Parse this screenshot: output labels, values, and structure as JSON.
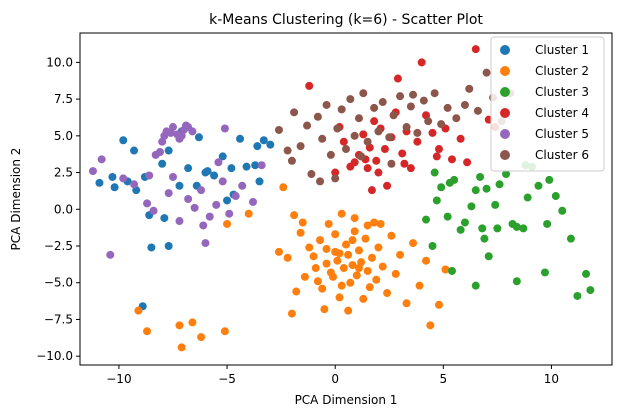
{
  "chart_data": {
    "type": "scatter",
    "title": "k-Means Clustering (k=6) - Scatter Plot",
    "xlabel": "PCA Dimension 1",
    "ylabel": "PCA Dimension 2",
    "xlim": [
      -11.8,
      12.8
    ],
    "ylim": [
      -10.6,
      12.0
    ],
    "xticks": [
      -10,
      -5,
      0,
      5,
      10
    ],
    "yticks": [
      -10.0,
      -7.5,
      -5.0,
      -2.5,
      0.0,
      2.5,
      5.0,
      7.5,
      10.0
    ],
    "ytick_labels": [
      "−10.0",
      "−7.5",
      "−5.0",
      "−2.5",
      "0.0",
      "2.5",
      "5.0",
      "7.5",
      "10.0"
    ],
    "xtick_labels": [
      "−10",
      "−5",
      "0",
      "5",
      "10"
    ],
    "grid": false,
    "legend_position": "top-right",
    "series": [
      {
        "name": "Cluster 1",
        "color": "#1f77b4",
        "points": [
          [
            -10.9,
            1.8
          ],
          [
            -10.3,
            2.2
          ],
          [
            -10.2,
            1.5
          ],
          [
            -9.8,
            4.7
          ],
          [
            -9.6,
            1.9
          ],
          [
            -9.3,
            4.0
          ],
          [
            -8.8,
            2.2
          ],
          [
            -8.6,
            -0.4
          ],
          [
            -8.5,
            -2.6
          ],
          [
            -8.0,
            3.1
          ],
          [
            -7.9,
            -0.6
          ],
          [
            -7.7,
            -2.5
          ],
          [
            -7.7,
            4.0
          ],
          [
            -7.2,
            1.6
          ],
          [
            -6.8,
            2.8
          ],
          [
            -6.4,
            1.6
          ],
          [
            -6.0,
            2.5
          ],
          [
            -5.9,
            2.6
          ],
          [
            -5.6,
            2.3
          ],
          [
            -5.2,
            3.6
          ],
          [
            -5.0,
            0.6
          ],
          [
            -4.7,
            1.0
          ],
          [
            -4.4,
            4.8
          ],
          [
            -4.1,
            2.9
          ],
          [
            -3.7,
            3.0
          ],
          [
            -3.6,
            4.3
          ],
          [
            -3.5,
            1.9
          ],
          [
            -3.3,
            4.7
          ],
          [
            -3.0,
            4.4
          ],
          [
            -8.9,
            -6.6
          ],
          [
            -9.2,
            1.3
          ],
          [
            -7.1,
            5.3
          ],
          [
            -6.3,
            4.9
          ],
          [
            -4.8,
            2.8
          ]
        ]
      },
      {
        "name": "Cluster 2",
        "color": "#ff7f0e",
        "points": [
          [
            -9.1,
            -6.9
          ],
          [
            -8.7,
            -8.3
          ],
          [
            -7.2,
            -7.9
          ],
          [
            -7.1,
            -9.4
          ],
          [
            -6.6,
            -7.7
          ],
          [
            -6.2,
            -8.7
          ],
          [
            -5.1,
            -8.3
          ],
          [
            -5.0,
            -1.0
          ],
          [
            -4.0,
            -0.3
          ],
          [
            -2.4,
            1.5
          ],
          [
            -1.9,
            -0.4
          ],
          [
            -1.6,
            -1.6
          ],
          [
            -2.0,
            -7.1
          ],
          [
            -1.4,
            -4.6
          ],
          [
            -1.2,
            -2.6
          ],
          [
            -1.0,
            -3.2
          ],
          [
            -0.9,
            -4.0
          ],
          [
            -0.7,
            -2.1
          ],
          [
            -0.6,
            -5.4
          ],
          [
            -0.4,
            -3.7
          ],
          [
            -0.3,
            -1.0
          ],
          [
            -0.2,
            -4.3
          ],
          [
            0.0,
            -2.9
          ],
          [
            0.1,
            -3.5
          ],
          [
            0.2,
            -6.0
          ],
          [
            0.3,
            -0.3
          ],
          [
            0.4,
            -4.0
          ],
          [
            0.5,
            -2.4
          ],
          [
            0.6,
            -3.1
          ],
          [
            0.7,
            -5.0
          ],
          [
            0.8,
            -3.8
          ],
          [
            0.9,
            -1.5
          ],
          [
            1.0,
            -4.5
          ],
          [
            1.1,
            -2.8
          ],
          [
            1.2,
            -3.6
          ],
          [
            1.3,
            -6.1
          ],
          [
            1.4,
            -2.0
          ],
          [
            1.5,
            -4.2
          ],
          [
            1.6,
            -5.3
          ],
          [
            1.7,
            -3.3
          ],
          [
            1.8,
            -0.9
          ],
          [
            1.9,
            -4.8
          ],
          [
            2.0,
            -2.6
          ],
          [
            2.2,
            -3.9
          ],
          [
            2.4,
            -5.7
          ],
          [
            2.6,
            -1.8
          ],
          [
            2.8,
            -4.4
          ],
          [
            3.0,
            -3.1
          ],
          [
            3.3,
            -6.4
          ],
          [
            3.6,
            -2.3
          ],
          [
            3.9,
            -5.2
          ],
          [
            4.2,
            -3.5
          ],
          [
            4.4,
            -7.9
          ],
          [
            4.8,
            -6.5
          ],
          [
            5.1,
            -4.1
          ],
          [
            -0.5,
            -6.8
          ],
          [
            0.6,
            -6.9
          ],
          [
            -1.8,
            -5.6
          ],
          [
            -2.2,
            -3.3
          ],
          [
            -1.5,
            -0.9
          ],
          [
            0.0,
            -1.7
          ],
          [
            0.9,
            -0.6
          ],
          [
            -0.8,
            -4.9
          ],
          [
            0.3,
            -5.2
          ],
          [
            1.5,
            -1.1
          ],
          [
            2.1,
            -1.0
          ],
          [
            -2.6,
            -2.9
          ],
          [
            -0.1,
            -4.6
          ],
          [
            0.2,
            -3.0
          ],
          [
            0.8,
            -2.1
          ],
          [
            1.1,
            -4.0
          ],
          [
            -0.4,
            -2.7
          ]
        ]
      },
      {
        "name": "Cluster 3",
        "color": "#2ca02c",
        "points": [
          [
            4.6,
            2.5
          ],
          [
            4.7,
            0.6
          ],
          [
            4.9,
            1.5
          ],
          [
            5.2,
            -0.5
          ],
          [
            5.3,
            1.8
          ],
          [
            5.5,
            2.0
          ],
          [
            5.8,
            -1.4
          ],
          [
            6.0,
            -0.9
          ],
          [
            6.3,
            0.2
          ],
          [
            6.5,
            1.3
          ],
          [
            6.7,
            2.2
          ],
          [
            6.8,
            -1.3
          ],
          [
            6.9,
            -2.0
          ],
          [
            7.1,
            -3.2
          ],
          [
            7.4,
            0.3
          ],
          [
            7.6,
            1.7
          ],
          [
            7.9,
            2.4
          ],
          [
            8.2,
            -1.0
          ],
          [
            8.4,
            -1.2
          ],
          [
            8.7,
            -1.3
          ],
          [
            8.9,
            0.8
          ],
          [
            9.1,
            2.9
          ],
          [
            9.4,
            1.6
          ],
          [
            9.7,
            -4.3
          ],
          [
            9.9,
            2.0
          ],
          [
            10.2,
            0.9
          ],
          [
            10.5,
            -0.1
          ],
          [
            10.9,
            -2.0
          ],
          [
            11.2,
            -5.9
          ],
          [
            11.6,
            -4.4
          ],
          [
            11.8,
            -5.5
          ],
          [
            4.2,
            -0.7
          ],
          [
            4.5,
            -2.5
          ],
          [
            5.4,
            -4.2
          ],
          [
            6.5,
            -5.2
          ],
          [
            8.4,
            -4.9
          ],
          [
            8.8,
            3.0
          ],
          [
            9.8,
            -1.0
          ],
          [
            7.5,
            -1.3
          ],
          [
            7.0,
            1.4
          ]
        ]
      },
      {
        "name": "Cluster 4",
        "color": "#d62728",
        "points": [
          [
            -1.2,
            8.4
          ],
          [
            0.2,
            5.6
          ],
          [
            0.4,
            4.6
          ],
          [
            0.7,
            2.9
          ],
          [
            0.9,
            3.2
          ],
          [
            1.1,
            3.7
          ],
          [
            1.3,
            5.1
          ],
          [
            1.5,
            2.8
          ],
          [
            1.6,
            4.2
          ],
          [
            1.8,
            6.0
          ],
          [
            1.9,
            3.3
          ],
          [
            2.1,
            5.5
          ],
          [
            2.3,
            4.1
          ],
          [
            2.4,
            1.6
          ],
          [
            2.6,
            4.9
          ],
          [
            2.8,
            6.6
          ],
          [
            2.9,
            8.9
          ],
          [
            3.1,
            3.8
          ],
          [
            3.3,
            5.3
          ],
          [
            3.5,
            2.8
          ],
          [
            3.8,
            4.6
          ],
          [
            4.0,
            10.0
          ],
          [
            4.2,
            6.4
          ],
          [
            4.5,
            5.2
          ],
          [
            4.8,
            4.1
          ],
          [
            5.1,
            5.5
          ],
          [
            5.4,
            3.4
          ],
          [
            5.8,
            4.8
          ],
          [
            6.1,
            3.2
          ],
          [
            6.5,
            10.9
          ],
          [
            7.1,
            6.1
          ],
          [
            7.4,
            5.6
          ],
          [
            0.0,
            2.5
          ],
          [
            2.0,
            2.5
          ],
          [
            3.2,
            3.1
          ],
          [
            4.7,
            3.6
          ],
          [
            1.4,
            3.4
          ],
          [
            1.7,
            1.3
          ]
        ]
      },
      {
        "name": "Cluster 5",
        "color": "#9467bd",
        "points": [
          [
            -11.2,
            2.6
          ],
          [
            -10.8,
            3.4
          ],
          [
            -10.4,
            -3.1
          ],
          [
            -9.8,
            2.1
          ],
          [
            -9.3,
            1.7
          ],
          [
            -8.7,
            0.4
          ],
          [
            -8.6,
            2.3
          ],
          [
            -8.4,
            -0.1
          ],
          [
            -8.1,
            3.9
          ],
          [
            -8.0,
            4.6
          ],
          [
            -7.9,
            5.0
          ],
          [
            -7.8,
            5.3
          ],
          [
            -7.6,
            5.2
          ],
          [
            -7.5,
            5.6
          ],
          [
            -7.3,
            5.1
          ],
          [
            -7.2,
            4.8
          ],
          [
            -7.1,
            5.0
          ],
          [
            -7.0,
            5.4
          ],
          [
            -6.9,
            5.7
          ],
          [
            -6.8,
            5.6
          ],
          [
            -6.6,
            5.3
          ],
          [
            -6.8,
            0.7
          ],
          [
            -6.5,
            0.1
          ],
          [
            -6.2,
            1.3
          ],
          [
            -6.0,
            -2.3
          ],
          [
            -5.8,
            -0.5
          ],
          [
            -5.5,
            0.3
          ],
          [
            -5.2,
            1.9
          ],
          [
            -5.1,
            5.5
          ],
          [
            -4.9,
            -0.3
          ],
          [
            -4.6,
            0.9
          ],
          [
            -3.8,
            0.5
          ],
          [
            -3.4,
            3.0
          ],
          [
            -7.2,
            -0.8
          ],
          [
            -7.5,
            2.2
          ],
          [
            -8.3,
            3.7
          ],
          [
            -6.1,
            -1.1
          ],
          [
            -5.4,
            3.2
          ],
          [
            -4.3,
            1.6
          ],
          [
            -7.7,
            1.1
          ]
        ]
      },
      {
        "name": "Cluster 6",
        "color": "#8c564b",
        "points": [
          [
            -2.6,
            5.4
          ],
          [
            -2.0,
            3.3
          ],
          [
            -1.9,
            6.6
          ],
          [
            -1.6,
            4.3
          ],
          [
            -1.3,
            5.7
          ],
          [
            -1.1,
            2.4
          ],
          [
            -0.8,
            6.3
          ],
          [
            -0.6,
            4.8
          ],
          [
            -0.4,
            7.1
          ],
          [
            -0.2,
            3.7
          ],
          [
            0.1,
            5.5
          ],
          [
            0.3,
            6.8
          ],
          [
            0.5,
            4.1
          ],
          [
            0.7,
            7.5
          ],
          [
            0.9,
            5.0
          ],
          [
            1.1,
            6.2
          ],
          [
            1.3,
            7.9
          ],
          [
            1.5,
            4.6
          ],
          [
            1.8,
            6.9
          ],
          [
            2.0,
            5.3
          ],
          [
            2.2,
            7.3
          ],
          [
            2.5,
            4.9
          ],
          [
            2.7,
            6.4
          ],
          [
            3.0,
            7.7
          ],
          [
            3.3,
            5.6
          ],
          [
            3.5,
            7.0
          ],
          [
            3.8,
            5.2
          ],
          [
            4.1,
            7.4
          ],
          [
            4.3,
            6.0
          ],
          [
            4.6,
            7.9
          ],
          [
            4.9,
            5.8
          ],
          [
            5.2,
            6.9
          ],
          [
            5.6,
            6.2
          ],
          [
            6.0,
            7.1
          ],
          [
            6.2,
            8.2
          ],
          [
            6.6,
            6.7
          ],
          [
            7.0,
            9.3
          ],
          [
            7.3,
            7.6
          ],
          [
            7.7,
            6.0
          ],
          [
            8.1,
            7.9
          ],
          [
            -0.7,
            1.9
          ],
          [
            -2.2,
            4.0
          ],
          [
            0.0,
            2.1
          ],
          [
            1.2,
            3.6
          ],
          [
            2.6,
            3.1
          ],
          [
            3.6,
            7.8
          ]
        ]
      }
    ]
  }
}
